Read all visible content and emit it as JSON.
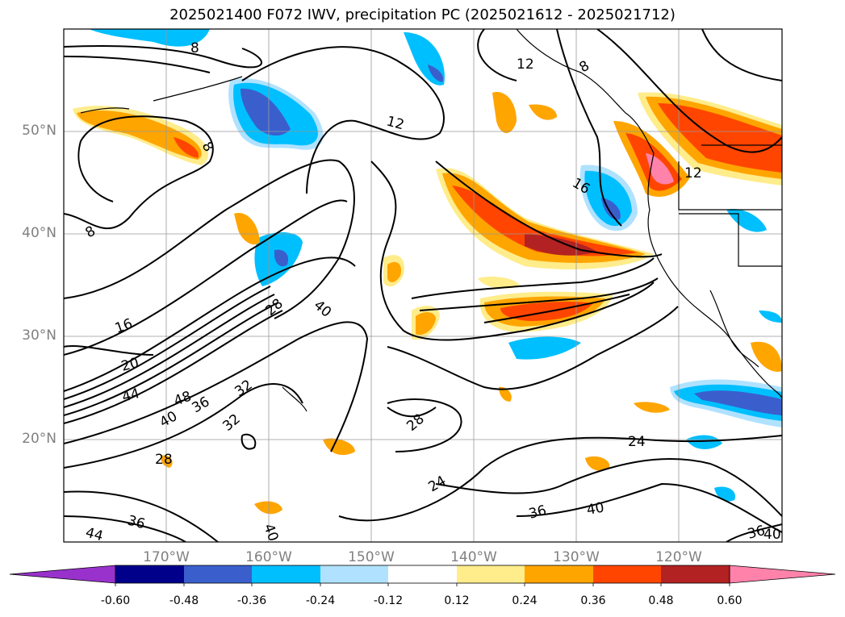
{
  "title": "2025021400 F072 IWV, precipitation PC (2025021612 - 2025021712)",
  "map": {
    "lon_range": [
      "180°W",
      "110°W"
    ],
    "lat_range": [
      "10°N",
      "60°N"
    ],
    "grid": true,
    "lat_labels": [
      "50°N",
      "40°N",
      "30°N",
      "20°N"
    ],
    "lon_labels": [
      "170°W",
      "160°W",
      "150°W",
      "140°W",
      "130°W",
      "120°W"
    ],
    "contour_labels": [
      "8",
      "8",
      "8",
      "8",
      "12",
      "12",
      "12",
      "16",
      "16",
      "20",
      "28",
      "40",
      "44",
      "48",
      "36",
      "32",
      "40",
      "32",
      "28",
      "28",
      "24",
      "24",
      "36",
      "40",
      "36",
      "40",
      "44",
      "36",
      "40"
    ],
    "contour_color": "#000000",
    "coastline_color": "#000000",
    "gridline_color": "#999999"
  },
  "colorbar": {
    "ticks": [
      "-0.60",
      "-0.48",
      "-0.36",
      "-0.24",
      "-0.12",
      "0.12",
      "0.24",
      "0.36",
      "0.48",
      "0.60"
    ],
    "colors": [
      "#9932cc",
      "#00008b",
      "#3a5fcd",
      "#00bfff",
      "#b0e2ff",
      "#ffffff",
      "#ffec8b",
      "#ffa500",
      "#ff4500",
      "#b22222",
      "#ff82ab"
    ],
    "extend": "both"
  }
}
